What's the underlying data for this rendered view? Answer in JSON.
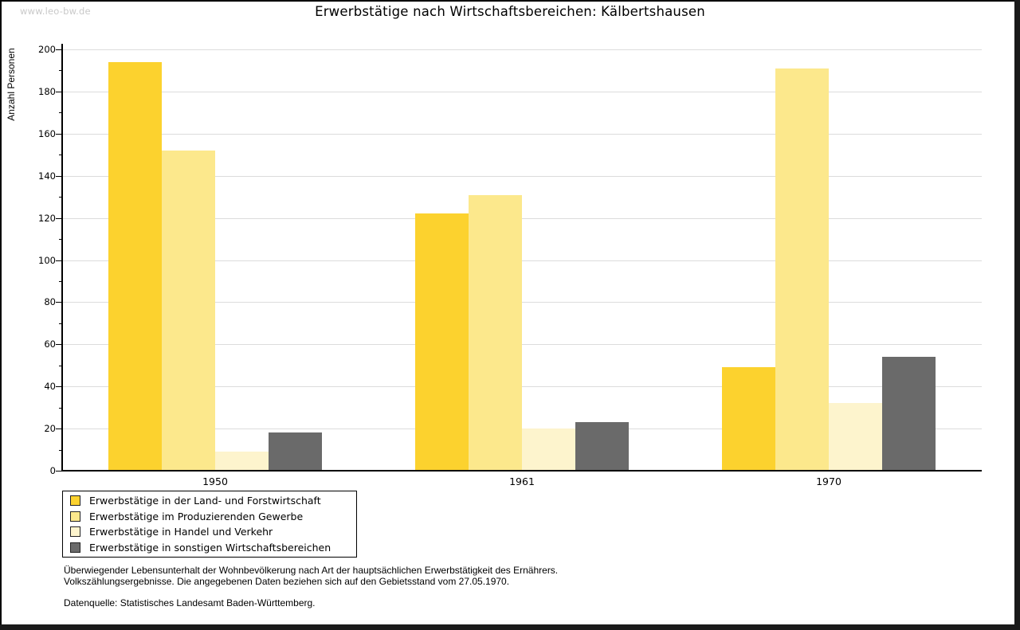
{
  "watermark": "www.leo-bw.de",
  "title": "Erwerbstätige nach Wirtschaftsbereichen: Kälbertshausen",
  "chart_data": {
    "type": "bar",
    "title": "Erwerbstätige nach Wirtschaftsbereichen: Kälbertshausen",
    "categories": [
      "1950",
      "1961",
      "1970"
    ],
    "series": [
      {
        "name": "Erwerbstätige in der Land- und Forstwirtschaft",
        "color": "#fcd22e",
        "values": [
          194,
          122,
          49
        ]
      },
      {
        "name": "Erwerbstätige im Produzierenden Gewerbe",
        "color": "#fce88c",
        "values": [
          152,
          131,
          191
        ]
      },
      {
        "name": "Erwerbstätige in Handel und Verkehr",
        "color": "#fdf4cd",
        "values": [
          9,
          20,
          32
        ]
      },
      {
        "name": "Erwerbstätige in sonstigen Wirtschaftsbereichen",
        "color": "#6a6a6a",
        "values": [
          18,
          23,
          54
        ]
      }
    ],
    "xlabel": "",
    "ylabel": "Anzahl Personen",
    "ylim": [
      0,
      200
    ],
    "ytick_step": 20,
    "yminor_step": 10,
    "grid": true,
    "legend_position": "bottom-left"
  },
  "footnotes": {
    "line1": "Überwiegender Lebensunterhalt der Wohnbevölkerung nach Art der hauptsächlichen Erwerbstätigkeit des Ernährers.",
    "line2": "Volkszählungsergebnisse. Die angegebenen Daten beziehen sich auf den Gebietsstand vom 27.05.1970.",
    "source": "Datenquelle: Statistisches Landesamt Baden-Württemberg."
  },
  "colors": {
    "grid": "#dcdcdc",
    "axis": "#000000",
    "watermark": "#c9c9c9"
  }
}
